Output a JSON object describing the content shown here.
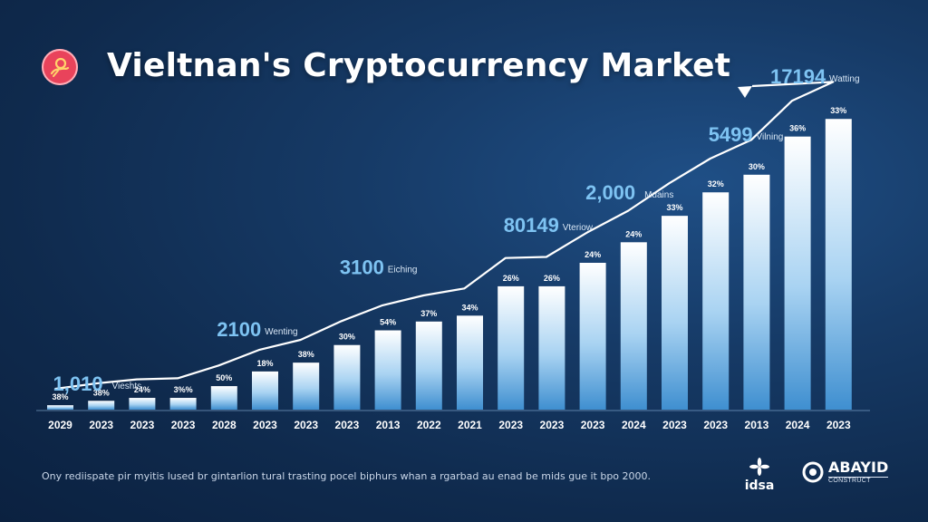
{
  "title": "Vieltnan's Cryptocurrency Market",
  "footnote": "Ony rediispate pir myitis lused br gintarlion tural trasting pocel biphurs whan a rgarbad au enad be mids gue it bpo 2000.",
  "brands": {
    "left": "idsa",
    "right": "ABAYID",
    "right_tag": "CONSTRUCT"
  },
  "colors": {
    "accent": "#e9435b",
    "bar_top": "#ffffff",
    "bar_bottom": "#3f8fd0",
    "callout": "#7ec3f2"
  },
  "icons": {
    "logo": "coin-hand-icon",
    "trend": "arrow-up-right-icon"
  },
  "chart_data": {
    "type": "bar",
    "categories": [
      "2029",
      "2023",
      "2023",
      "2023",
      "2028",
      "2023",
      "2023",
      "2023",
      "2013",
      "2022",
      "2021",
      "2023",
      "2023",
      "2023",
      "2024",
      "2023",
      "2023",
      "2013",
      "2024",
      "2023"
    ],
    "values": [
      1.5,
      3,
      4,
      4,
      8,
      13,
      16,
      22,
      27,
      30,
      32,
      42,
      42,
      50,
      57,
      66,
      74,
      80,
      93,
      99
    ],
    "value_labels": [
      "38%",
      "38%",
      "24%",
      "3%%",
      "50%",
      "18%",
      "38%",
      "30%",
      "54%",
      "37%",
      "34%",
      "26%",
      "26%",
      "24%",
      "24%",
      "33%",
      "32%",
      "30%",
      "36%",
      "33%"
    ],
    "ylim": [
      0,
      100
    ],
    "trend_line": true,
    "callouts": [
      {
        "value": "1,010",
        "label": "Vieshts",
        "index": 0
      },
      {
        "value": "2100",
        "label": "Wenting",
        "index": 4
      },
      {
        "value": "3100",
        "label": "Eiching",
        "index": 7
      },
      {
        "value": "80149",
        "label": "Vteriow",
        "index": 11
      },
      {
        "value": "2,000",
        "label": "Muains",
        "index": 13
      },
      {
        "value": "5499",
        "label": "Vilning",
        "index": 16
      },
      {
        "value": "17194",
        "label": "Watting",
        "index": 19
      }
    ]
  }
}
